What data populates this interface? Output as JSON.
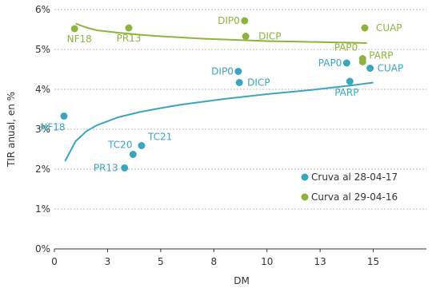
{
  "chart_data": {
    "type": "scatter",
    "title": "",
    "xlabel": "DM",
    "ylabel": "TIR anual, en %",
    "xlim": [
      0,
      17.5
    ],
    "ylim": [
      0,
      6
    ],
    "x_ticks": [
      0,
      2.5,
      5,
      7.5,
      10,
      12.5,
      15
    ],
    "x_tick_labels": [
      "0",
      "3",
      "5",
      "8",
      "10",
      "13",
      "15"
    ],
    "y_ticks": [
      0,
      1,
      2,
      3,
      4,
      5,
      6
    ],
    "y_tick_labels": [
      "0%",
      "1%",
      "2%",
      "3%",
      "4%",
      "5%",
      "6%"
    ],
    "grid": "horizontal",
    "legend_position": "bottom-right",
    "colors": {
      "series_2017": "#3aa6bd",
      "series_2016": "#8db43d",
      "axis": "#333333",
      "grid": "#bbbbbb"
    },
    "series": [
      {
        "name": "Cruva al 28-04-17",
        "color": "#3aa6bd",
        "points": [
          {
            "label": "NF18",
            "x": 0.45,
            "y": 3.33
          },
          {
            "label": "PR13",
            "x": 3.3,
            "y": 2.03
          },
          {
            "label": "TC20",
            "x": 3.7,
            "y": 2.37
          },
          {
            "label": "TC21",
            "x": 4.1,
            "y": 2.59
          },
          {
            "label": "DIP0",
            "x": 8.65,
            "y": 4.45
          },
          {
            "label": "DICP",
            "x": 8.7,
            "y": 4.17
          },
          {
            "label": "PAP0",
            "x": 13.75,
            "y": 4.66
          },
          {
            "label": "PARP",
            "x": 13.9,
            "y": 4.2
          },
          {
            "label": "CUAP",
            "x": 14.85,
            "y": 4.53
          }
        ],
        "curve": [
          [
            0.5,
            2.2
          ],
          [
            1.0,
            2.7
          ],
          [
            1.5,
            2.95
          ],
          [
            2.0,
            3.1
          ],
          [
            3.0,
            3.3
          ],
          [
            4.0,
            3.43
          ],
          [
            5.0,
            3.53
          ],
          [
            6.0,
            3.62
          ],
          [
            7.0,
            3.69
          ],
          [
            8.0,
            3.76
          ],
          [
            9.0,
            3.82
          ],
          [
            10.0,
            3.88
          ],
          [
            11.0,
            3.93
          ],
          [
            12.0,
            3.98
          ],
          [
            13.0,
            4.04
          ],
          [
            14.0,
            4.1
          ],
          [
            15.0,
            4.17
          ]
        ]
      },
      {
        "name": "Curva al 29-04-16",
        "color": "#8db43d",
        "points": [
          {
            "label": "NF18",
            "x": 0.95,
            "y": 5.52
          },
          {
            "label": "PR13",
            "x": 3.5,
            "y": 5.54
          },
          {
            "label": "DIP0",
            "x": 8.95,
            "y": 5.72
          },
          {
            "label": "DICP",
            "x": 9.0,
            "y": 5.33
          },
          {
            "label": "PAP0",
            "x": 14.5,
            "y": 4.77
          },
          {
            "label": "PARP",
            "x": 14.5,
            "y": 4.69
          },
          {
            "label": "CUAP",
            "x": 14.6,
            "y": 5.54
          }
        ],
        "curve": [
          [
            1.0,
            5.65
          ],
          [
            1.5,
            5.55
          ],
          [
            2.0,
            5.48
          ],
          [
            3.0,
            5.42
          ],
          [
            4.0,
            5.37
          ],
          [
            5.0,
            5.33
          ],
          [
            6.0,
            5.3
          ],
          [
            7.0,
            5.27
          ],
          [
            8.0,
            5.25
          ],
          [
            9.0,
            5.23
          ],
          [
            10.0,
            5.21
          ],
          [
            11.0,
            5.2
          ],
          [
            12.0,
            5.19
          ],
          [
            13.0,
            5.18
          ],
          [
            14.0,
            5.17
          ],
          [
            14.7,
            5.16
          ]
        ]
      }
    ]
  }
}
